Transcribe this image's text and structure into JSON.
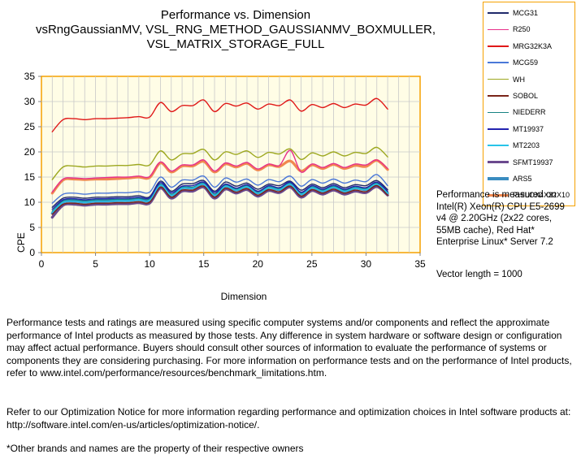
{
  "chart_data": {
    "type": "line",
    "title": [
      "Performance vs. Dimension",
      "vsRngGaussianMV,  VSL_RNG_METHOD_GAUSSIANMV_BOXMULLER,",
      "VSL_MATRIX_STORAGE_FULL"
    ],
    "xlabel": "Dimension",
    "ylabel": "CPE",
    "xlim": [
      0,
      35
    ],
    "ylim": [
      0,
      35
    ],
    "xticks": [
      0,
      5,
      10,
      15,
      20,
      25,
      30,
      35
    ],
    "yticks": [
      0,
      5,
      10,
      15,
      20,
      25,
      30,
      35
    ],
    "grid": true,
    "legend_position": "top-right",
    "x": [
      1,
      2,
      3,
      4,
      5,
      6,
      7,
      8,
      9,
      10,
      11,
      12,
      13,
      14,
      15,
      16,
      17,
      18,
      19,
      20,
      21,
      22,
      23,
      24,
      25,
      26,
      27,
      28,
      29,
      30,
      31,
      32
    ],
    "series": [
      {
        "name": "MCG31",
        "color": "#1f2a6b",
        "width": 1.4,
        "values": [
          9.0,
          10.8,
          11.0,
          10.8,
          11.0,
          11.0,
          11.1,
          11.1,
          11.3,
          11.1,
          14.2,
          12.2,
          13.6,
          13.7,
          14.3,
          12.2,
          14.0,
          13.2,
          13.8,
          12.6,
          13.6,
          13.3,
          14.2,
          12.4,
          13.6,
          12.9,
          13.7,
          12.9,
          13.5,
          13.3,
          14.3,
          12.5
        ]
      },
      {
        "name": "R250",
        "color": "#e8308a",
        "width": 1.4,
        "values": [
          12.0,
          14.6,
          14.8,
          14.7,
          14.8,
          14.9,
          15.0,
          15.0,
          15.2,
          15.1,
          18.0,
          16.2,
          17.4,
          17.4,
          18.4,
          16.2,
          17.8,
          17.2,
          17.9,
          16.6,
          17.6,
          17.3,
          20.3,
          16.0,
          17.6,
          16.9,
          17.7,
          16.9,
          17.6,
          17.4,
          18.4,
          16.7
        ]
      },
      {
        "name": "MRG32K3A",
        "color": "#e01818",
        "width": 1.4,
        "values": [
          24.0,
          26.4,
          26.6,
          26.4,
          26.6,
          26.6,
          26.7,
          26.8,
          27.0,
          26.9,
          29.8,
          28.0,
          29.2,
          29.2,
          30.3,
          28.0,
          29.6,
          29.1,
          29.7,
          28.5,
          29.5,
          29.2,
          30.3,
          28.1,
          29.4,
          28.8,
          29.6,
          28.8,
          29.5,
          29.3,
          30.6,
          28.5
        ]
      },
      {
        "name": "MCG59",
        "color": "#4a78d8",
        "width": 1.4,
        "values": [
          9.8,
          11.6,
          11.8,
          11.6,
          11.8,
          11.8,
          11.9,
          11.9,
          12.1,
          12.0,
          15.0,
          13.0,
          14.4,
          14.4,
          15.2,
          13.0,
          14.8,
          14.0,
          14.6,
          13.4,
          14.5,
          14.1,
          15.2,
          13.2,
          14.5,
          13.8,
          14.6,
          13.8,
          14.4,
          14.1,
          15.5,
          13.3
        ]
      },
      {
        "name": "WH",
        "color": "#9da820",
        "width": 1.4,
        "values": [
          14.5,
          17.0,
          17.2,
          17.0,
          17.2,
          17.2,
          17.3,
          17.3,
          17.5,
          17.4,
          20.2,
          18.4,
          19.6,
          19.7,
          20.5,
          18.4,
          20.0,
          19.5,
          20.2,
          18.9,
          19.9,
          19.6,
          20.6,
          18.5,
          19.8,
          19.2,
          20.0,
          19.2,
          19.9,
          19.7,
          20.9,
          19.0
        ]
      },
      {
        "name": "SOBOL",
        "color": "#7a2418",
        "width": 1.4,
        "values": [
          7.6,
          9.6,
          9.8,
          9.6,
          9.8,
          9.8,
          9.9,
          9.9,
          10.1,
          10.0,
          13.0,
          11.0,
          12.4,
          12.4,
          13.2,
          11.0,
          12.8,
          12.0,
          12.7,
          11.4,
          12.5,
          12.1,
          13.2,
          11.2,
          12.5,
          11.8,
          12.6,
          11.8,
          12.4,
          12.1,
          13.3,
          11.4
        ]
      },
      {
        "name": "NIEDERR",
        "color": "#178282",
        "width": 1.4,
        "values": [
          8.2,
          10.3,
          10.5,
          10.3,
          10.5,
          10.5,
          10.6,
          10.6,
          10.8,
          10.7,
          13.6,
          11.6,
          13.0,
          13.0,
          13.8,
          11.6,
          13.4,
          12.6,
          13.3,
          12.0,
          13.1,
          12.7,
          13.8,
          11.8,
          13.1,
          12.4,
          13.2,
          12.4,
          13.0,
          12.7,
          13.8,
          12.0
        ]
      },
      {
        "name": "MT19937",
        "color": "#2323b0",
        "width": 1.4,
        "values": [
          8.6,
          10.5,
          10.7,
          10.5,
          10.7,
          10.7,
          10.8,
          10.8,
          11.0,
          10.9,
          13.9,
          11.9,
          13.2,
          13.3,
          14.0,
          11.9,
          13.6,
          12.8,
          13.5,
          12.2,
          13.3,
          12.9,
          14.0,
          12.0,
          13.3,
          12.6,
          13.4,
          12.6,
          13.2,
          12.9,
          14.0,
          12.2
        ]
      },
      {
        "name": "MT2203",
        "color": "#28c4e8",
        "width": 1.4,
        "values": [
          8.0,
          10.0,
          10.2,
          10.0,
          10.2,
          10.2,
          10.3,
          10.3,
          10.5,
          10.4,
          13.4,
          11.4,
          12.8,
          12.8,
          13.6,
          11.4,
          13.2,
          12.4,
          13.1,
          11.8,
          12.9,
          12.5,
          13.6,
          11.6,
          12.9,
          12.2,
          13.0,
          12.2,
          12.8,
          12.5,
          13.6,
          11.8
        ]
      },
      {
        "name": "SFMT19937",
        "color": "#6b4a8e",
        "width": 3.2,
        "values": [
          7.0,
          9.4,
          9.6,
          9.4,
          9.6,
          9.6,
          9.7,
          9.7,
          9.9,
          9.8,
          12.8,
          10.8,
          12.2,
          12.2,
          13.0,
          10.8,
          12.6,
          11.8,
          12.5,
          11.2,
          12.3,
          11.9,
          13.0,
          11.0,
          12.3,
          11.6,
          12.4,
          11.6,
          12.2,
          11.9,
          13.1,
          11.4
        ]
      },
      {
        "name": "ARS5",
        "color": "#3a8cc0",
        "width": 3.2,
        "values": [
          7.8,
          10.0,
          10.2,
          10.0,
          10.2,
          10.2,
          10.3,
          10.3,
          10.5,
          10.4,
          13.4,
          11.4,
          12.8,
          12.8,
          13.6,
          11.4,
          13.2,
          12.4,
          13.1,
          11.8,
          12.9,
          12.5,
          13.6,
          11.6,
          12.9,
          12.2,
          13.0,
          12.2,
          12.8,
          12.5,
          13.6,
          11.8
        ]
      },
      {
        "name": "PHILOX4X32X10",
        "color": "#f08850",
        "width": 3.2,
        "values": [
          11.8,
          14.4,
          14.6,
          14.5,
          14.6,
          14.6,
          14.7,
          14.8,
          15.0,
          14.9,
          17.8,
          16.0,
          17.2,
          17.2,
          18.1,
          16.0,
          17.6,
          17.0,
          17.7,
          16.4,
          17.4,
          17.1,
          18.2,
          16.2,
          17.4,
          16.7,
          17.5,
          16.7,
          17.3,
          17.1,
          18.3,
          16.5
        ]
      }
    ]
  },
  "notes": {
    "system": "Performance is measured on Intel(R) Xeon(R) CPU E5-2699 v4 @ 2.20GHz (2x22 cores, 55MB cache), Red Hat* Enterprise Linux* Server 7.2",
    "vector_length": "Vector length = 1000"
  },
  "disclaimer": {
    "p1": "Performance tests and ratings are measured using specific computer systems and/or components and reflect the approximate performance of Intel products as measured by those tests. Any difference in system hardware or software design or configuration may affect actual performance. Buyers should consult other sources of information to evaluate the performance of systems or components they are considering purchasing. For more information on performance tests and on the performance of Intel products, refer to www.intel.com/performance/resources/benchmark_limitations.htm.",
    "p2": "Refer to our Optimization Notice for more information regarding performance and optimization choices in Intel software products at: http://software.intel.com/en-us/articles/optimization-notice/.",
    "p3": "*Other brands and names are the property of their respective owners"
  },
  "colors": {
    "plot_bg": "#fffde6",
    "plot_border": "#f5a100",
    "grid": "#c8c8c8"
  }
}
